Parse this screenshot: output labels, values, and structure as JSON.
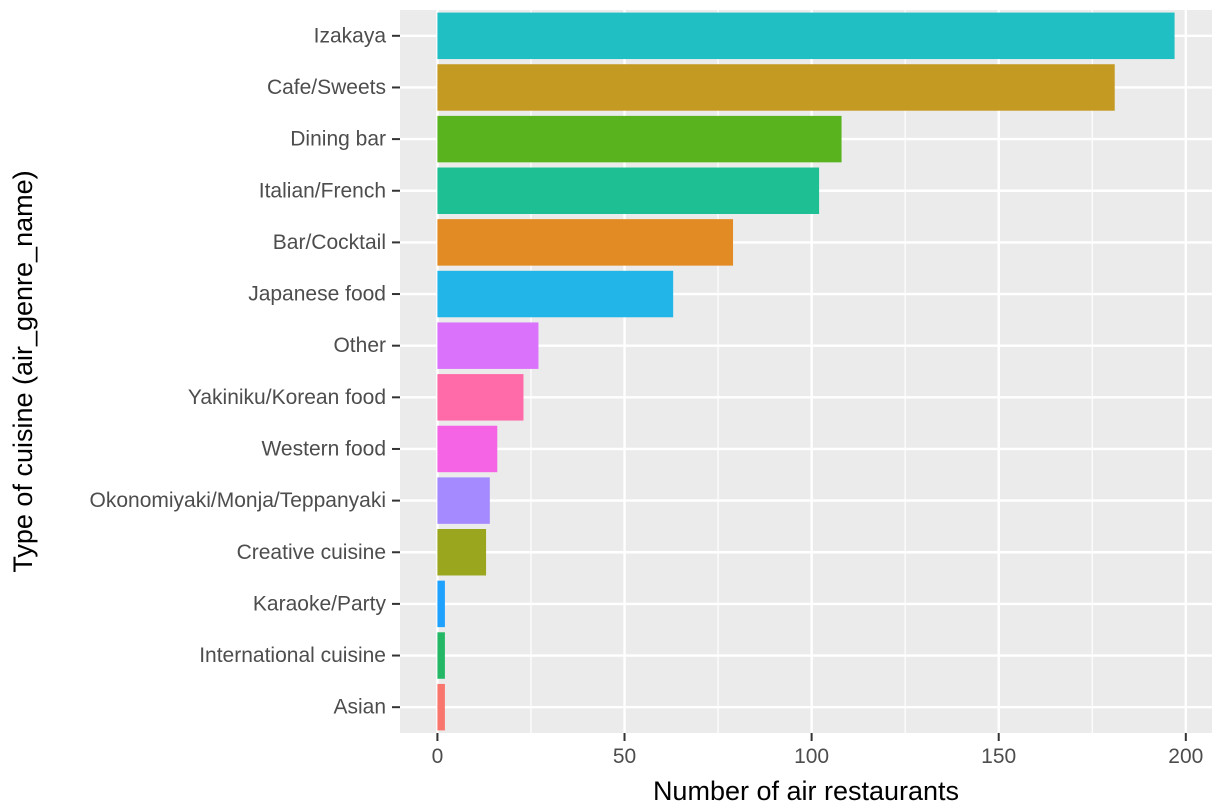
{
  "chart_data": {
    "type": "bar",
    "orientation": "horizontal",
    "xlabel": "Number of air restaurants",
    "ylabel": "Type of cuisine (air_genre_name)",
    "xlim": [
      -10,
      207
    ],
    "x_ticks": [
      0,
      50,
      100,
      150,
      200
    ],
    "grid": true,
    "legend": "none",
    "categories": [
      "Izakaya",
      "Cafe/Sweets",
      "Dining bar",
      "Italian/French",
      "Bar/Cocktail",
      "Japanese food",
      "Other",
      "Yakiniku/Korean food",
      "Western food",
      "Okonomiyaki/Monja/Teppanyaki",
      "Creative cuisine",
      "Karaoke/Party",
      "International cuisine",
      "Asian"
    ],
    "values": [
      197,
      181,
      108,
      102,
      79,
      63,
      27,
      23,
      16,
      14,
      13,
      2,
      2,
      2
    ],
    "colors": [
      "#20BFC4",
      "#C49A22",
      "#58B31E",
      "#1FBF94",
      "#E28A24",
      "#22B6E8",
      "#DB72FB",
      "#FF6BA8",
      "#F464E4",
      "#A58AFF",
      "#9AA61E",
      "#1FA2FF",
      "#24B866",
      "#F8766D"
    ],
    "panel_background": "#EBEBEB",
    "gridline_color": "#FFFFFF"
  }
}
